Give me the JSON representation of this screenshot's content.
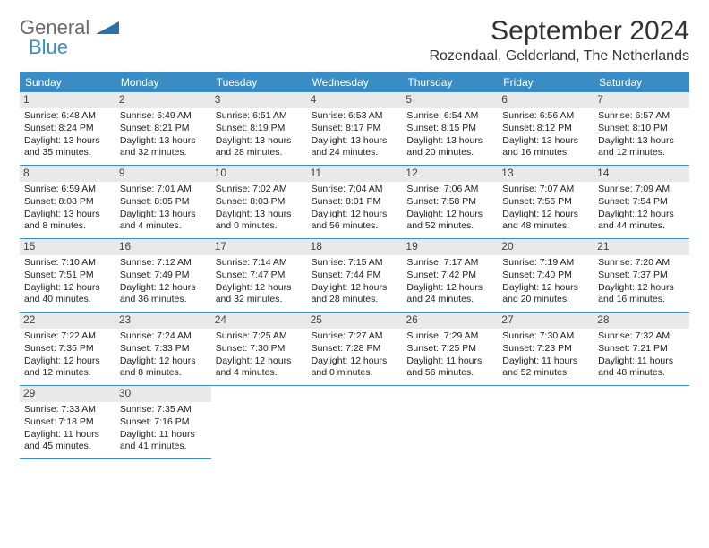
{
  "logo": {
    "general": "General",
    "blue": "Blue"
  },
  "title": "September 2024",
  "location": "Rozendaal, Gelderland, The Netherlands",
  "colors": {
    "accent": "#3a8dc4",
    "header_bg": "#3a8dc4",
    "daynum_bg": "#e9e9e9",
    "text": "#222",
    "background": "#ffffff"
  },
  "day_headers": [
    "Sunday",
    "Monday",
    "Tuesday",
    "Wednesday",
    "Thursday",
    "Friday",
    "Saturday"
  ],
  "calendar": {
    "type": "table",
    "columns": 7,
    "font_size_body": 10.5,
    "font_size_daynum": 12,
    "font_size_header": 12
  },
  "days": [
    {
      "n": "1",
      "sr": "Sunrise: 6:48 AM",
      "ss": "Sunset: 8:24 PM",
      "d1": "Daylight: 13 hours",
      "d2": "and 35 minutes."
    },
    {
      "n": "2",
      "sr": "Sunrise: 6:49 AM",
      "ss": "Sunset: 8:21 PM",
      "d1": "Daylight: 13 hours",
      "d2": "and 32 minutes."
    },
    {
      "n": "3",
      "sr": "Sunrise: 6:51 AM",
      "ss": "Sunset: 8:19 PM",
      "d1": "Daylight: 13 hours",
      "d2": "and 28 minutes."
    },
    {
      "n": "4",
      "sr": "Sunrise: 6:53 AM",
      "ss": "Sunset: 8:17 PM",
      "d1": "Daylight: 13 hours",
      "d2": "and 24 minutes."
    },
    {
      "n": "5",
      "sr": "Sunrise: 6:54 AM",
      "ss": "Sunset: 8:15 PM",
      "d1": "Daylight: 13 hours",
      "d2": "and 20 minutes."
    },
    {
      "n": "6",
      "sr": "Sunrise: 6:56 AM",
      "ss": "Sunset: 8:12 PM",
      "d1": "Daylight: 13 hours",
      "d2": "and 16 minutes."
    },
    {
      "n": "7",
      "sr": "Sunrise: 6:57 AM",
      "ss": "Sunset: 8:10 PM",
      "d1": "Daylight: 13 hours",
      "d2": "and 12 minutes."
    },
    {
      "n": "8",
      "sr": "Sunrise: 6:59 AM",
      "ss": "Sunset: 8:08 PM",
      "d1": "Daylight: 13 hours",
      "d2": "and 8 minutes."
    },
    {
      "n": "9",
      "sr": "Sunrise: 7:01 AM",
      "ss": "Sunset: 8:05 PM",
      "d1": "Daylight: 13 hours",
      "d2": "and 4 minutes."
    },
    {
      "n": "10",
      "sr": "Sunrise: 7:02 AM",
      "ss": "Sunset: 8:03 PM",
      "d1": "Daylight: 13 hours",
      "d2": "and 0 minutes."
    },
    {
      "n": "11",
      "sr": "Sunrise: 7:04 AM",
      "ss": "Sunset: 8:01 PM",
      "d1": "Daylight: 12 hours",
      "d2": "and 56 minutes."
    },
    {
      "n": "12",
      "sr": "Sunrise: 7:06 AM",
      "ss": "Sunset: 7:58 PM",
      "d1": "Daylight: 12 hours",
      "d2": "and 52 minutes."
    },
    {
      "n": "13",
      "sr": "Sunrise: 7:07 AM",
      "ss": "Sunset: 7:56 PM",
      "d1": "Daylight: 12 hours",
      "d2": "and 48 minutes."
    },
    {
      "n": "14",
      "sr": "Sunrise: 7:09 AM",
      "ss": "Sunset: 7:54 PM",
      "d1": "Daylight: 12 hours",
      "d2": "and 44 minutes."
    },
    {
      "n": "15",
      "sr": "Sunrise: 7:10 AM",
      "ss": "Sunset: 7:51 PM",
      "d1": "Daylight: 12 hours",
      "d2": "and 40 minutes."
    },
    {
      "n": "16",
      "sr": "Sunrise: 7:12 AM",
      "ss": "Sunset: 7:49 PM",
      "d1": "Daylight: 12 hours",
      "d2": "and 36 minutes."
    },
    {
      "n": "17",
      "sr": "Sunrise: 7:14 AM",
      "ss": "Sunset: 7:47 PM",
      "d1": "Daylight: 12 hours",
      "d2": "and 32 minutes."
    },
    {
      "n": "18",
      "sr": "Sunrise: 7:15 AM",
      "ss": "Sunset: 7:44 PM",
      "d1": "Daylight: 12 hours",
      "d2": "and 28 minutes."
    },
    {
      "n": "19",
      "sr": "Sunrise: 7:17 AM",
      "ss": "Sunset: 7:42 PM",
      "d1": "Daylight: 12 hours",
      "d2": "and 24 minutes."
    },
    {
      "n": "20",
      "sr": "Sunrise: 7:19 AM",
      "ss": "Sunset: 7:40 PM",
      "d1": "Daylight: 12 hours",
      "d2": "and 20 minutes."
    },
    {
      "n": "21",
      "sr": "Sunrise: 7:20 AM",
      "ss": "Sunset: 7:37 PM",
      "d1": "Daylight: 12 hours",
      "d2": "and 16 minutes."
    },
    {
      "n": "22",
      "sr": "Sunrise: 7:22 AM",
      "ss": "Sunset: 7:35 PM",
      "d1": "Daylight: 12 hours",
      "d2": "and 12 minutes."
    },
    {
      "n": "23",
      "sr": "Sunrise: 7:24 AM",
      "ss": "Sunset: 7:33 PM",
      "d1": "Daylight: 12 hours",
      "d2": "and 8 minutes."
    },
    {
      "n": "24",
      "sr": "Sunrise: 7:25 AM",
      "ss": "Sunset: 7:30 PM",
      "d1": "Daylight: 12 hours",
      "d2": "and 4 minutes."
    },
    {
      "n": "25",
      "sr": "Sunrise: 7:27 AM",
      "ss": "Sunset: 7:28 PM",
      "d1": "Daylight: 12 hours",
      "d2": "and 0 minutes."
    },
    {
      "n": "26",
      "sr": "Sunrise: 7:29 AM",
      "ss": "Sunset: 7:25 PM",
      "d1": "Daylight: 11 hours",
      "d2": "and 56 minutes."
    },
    {
      "n": "27",
      "sr": "Sunrise: 7:30 AM",
      "ss": "Sunset: 7:23 PM",
      "d1": "Daylight: 11 hours",
      "d2": "and 52 minutes."
    },
    {
      "n": "28",
      "sr": "Sunrise: 7:32 AM",
      "ss": "Sunset: 7:21 PM",
      "d1": "Daylight: 11 hours",
      "d2": "and 48 minutes."
    },
    {
      "n": "29",
      "sr": "Sunrise: 7:33 AM",
      "ss": "Sunset: 7:18 PM",
      "d1": "Daylight: 11 hours",
      "d2": "and 45 minutes."
    },
    {
      "n": "30",
      "sr": "Sunrise: 7:35 AM",
      "ss": "Sunset: 7:16 PM",
      "d1": "Daylight: 11 hours",
      "d2": "and 41 minutes."
    }
  ]
}
